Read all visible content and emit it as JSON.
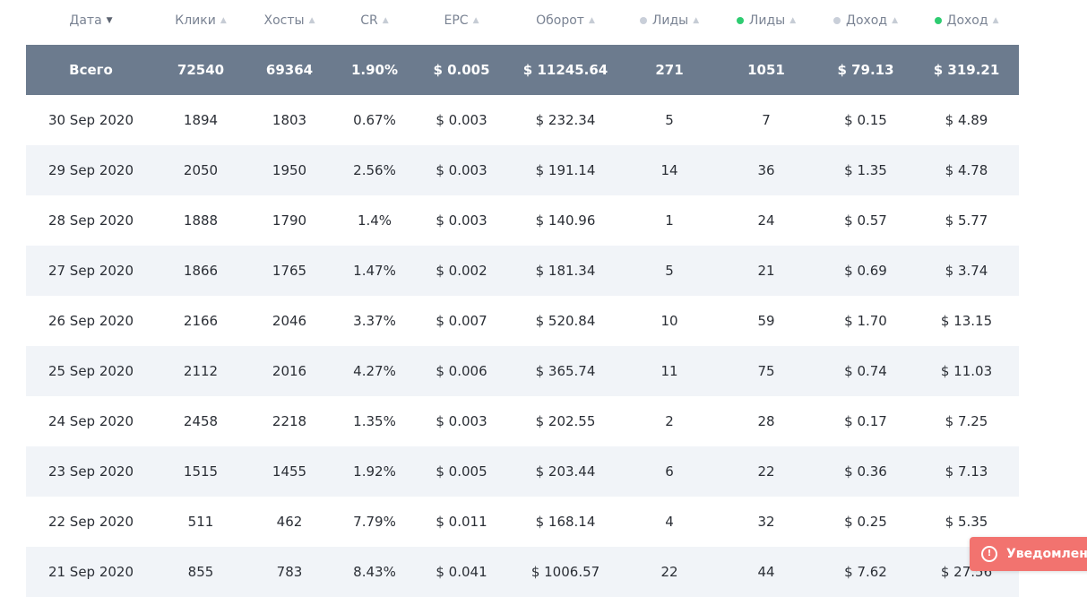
{
  "colors": {
    "total_row_bg": "#6c7b8e",
    "stripe_bg": "#f1f4f8",
    "dot_gray": "#c9cfd9",
    "dot_green": "#2ecc71",
    "toast_bg": "#f2736f"
  },
  "columns": [
    {
      "label": "Дата",
      "sort": "desc-active",
      "dot": null
    },
    {
      "label": "Клики",
      "sort": "inactive",
      "dot": null
    },
    {
      "label": "Хосты",
      "sort": "inactive",
      "dot": null
    },
    {
      "label": "CR",
      "sort": "inactive",
      "dot": null
    },
    {
      "label": "EPC",
      "sort": "inactive",
      "dot": null
    },
    {
      "label": "Оборот",
      "sort": "inactive",
      "dot": null
    },
    {
      "label": "Лиды",
      "sort": "inactive",
      "dot": "gray"
    },
    {
      "label": "Лиды",
      "sort": "inactive",
      "dot": "green"
    },
    {
      "label": "Доход",
      "sort": "inactive",
      "dot": "gray"
    },
    {
      "label": "Доход",
      "sort": "inactive",
      "dot": "green"
    }
  ],
  "total": [
    "Всего",
    "72540",
    "69364",
    "1.90%",
    "$ 0.005",
    "$ 11245.64",
    "271",
    "1051",
    "$ 79.13",
    "$ 319.21"
  ],
  "rows": [
    [
      "30 Sep 2020",
      "1894",
      "1803",
      "0.67%",
      "$ 0.003",
      "$ 232.34",
      "5",
      "7",
      "$ 0.15",
      "$ 4.89"
    ],
    [
      "29 Sep 2020",
      "2050",
      "1950",
      "2.56%",
      "$ 0.003",
      "$ 191.14",
      "14",
      "36",
      "$ 1.35",
      "$ 4.78"
    ],
    [
      "28 Sep 2020",
      "1888",
      "1790",
      "1.4%",
      "$ 0.003",
      "$ 140.96",
      "1",
      "24",
      "$ 0.57",
      "$ 5.77"
    ],
    [
      "27 Sep 2020",
      "1866",
      "1765",
      "1.47%",
      "$ 0.002",
      "$ 181.34",
      "5",
      "21",
      "$ 0.69",
      "$ 3.74"
    ],
    [
      "26 Sep 2020",
      "2166",
      "2046",
      "3.37%",
      "$ 0.007",
      "$ 520.84",
      "10",
      "59",
      "$ 1.70",
      "$ 13.15"
    ],
    [
      "25 Sep 2020",
      "2112",
      "2016",
      "4.27%",
      "$ 0.006",
      "$ 365.74",
      "11",
      "75",
      "$ 0.74",
      "$ 11.03"
    ],
    [
      "24 Sep 2020",
      "2458",
      "2218",
      "1.35%",
      "$ 0.003",
      "$ 202.55",
      "2",
      "28",
      "$ 0.17",
      "$ 7.25"
    ],
    [
      "23 Sep 2020",
      "1515",
      "1455",
      "1.92%",
      "$ 0.005",
      "$ 203.44",
      "6",
      "22",
      "$ 0.36",
      "$ 7.13"
    ],
    [
      "22 Sep 2020",
      "511",
      "462",
      "7.79%",
      "$ 0.011",
      "$ 168.14",
      "4",
      "32",
      "$ 0.25",
      "$ 5.35"
    ],
    [
      "21 Sep 2020",
      "855",
      "783",
      "8.43%",
      "$ 0.041",
      "$ 1006.57",
      "22",
      "44",
      "$ 7.62",
      "$ 27.56"
    ]
  ],
  "toast": {
    "icon": "alert-circle-icon",
    "text": "Уведомлени"
  }
}
